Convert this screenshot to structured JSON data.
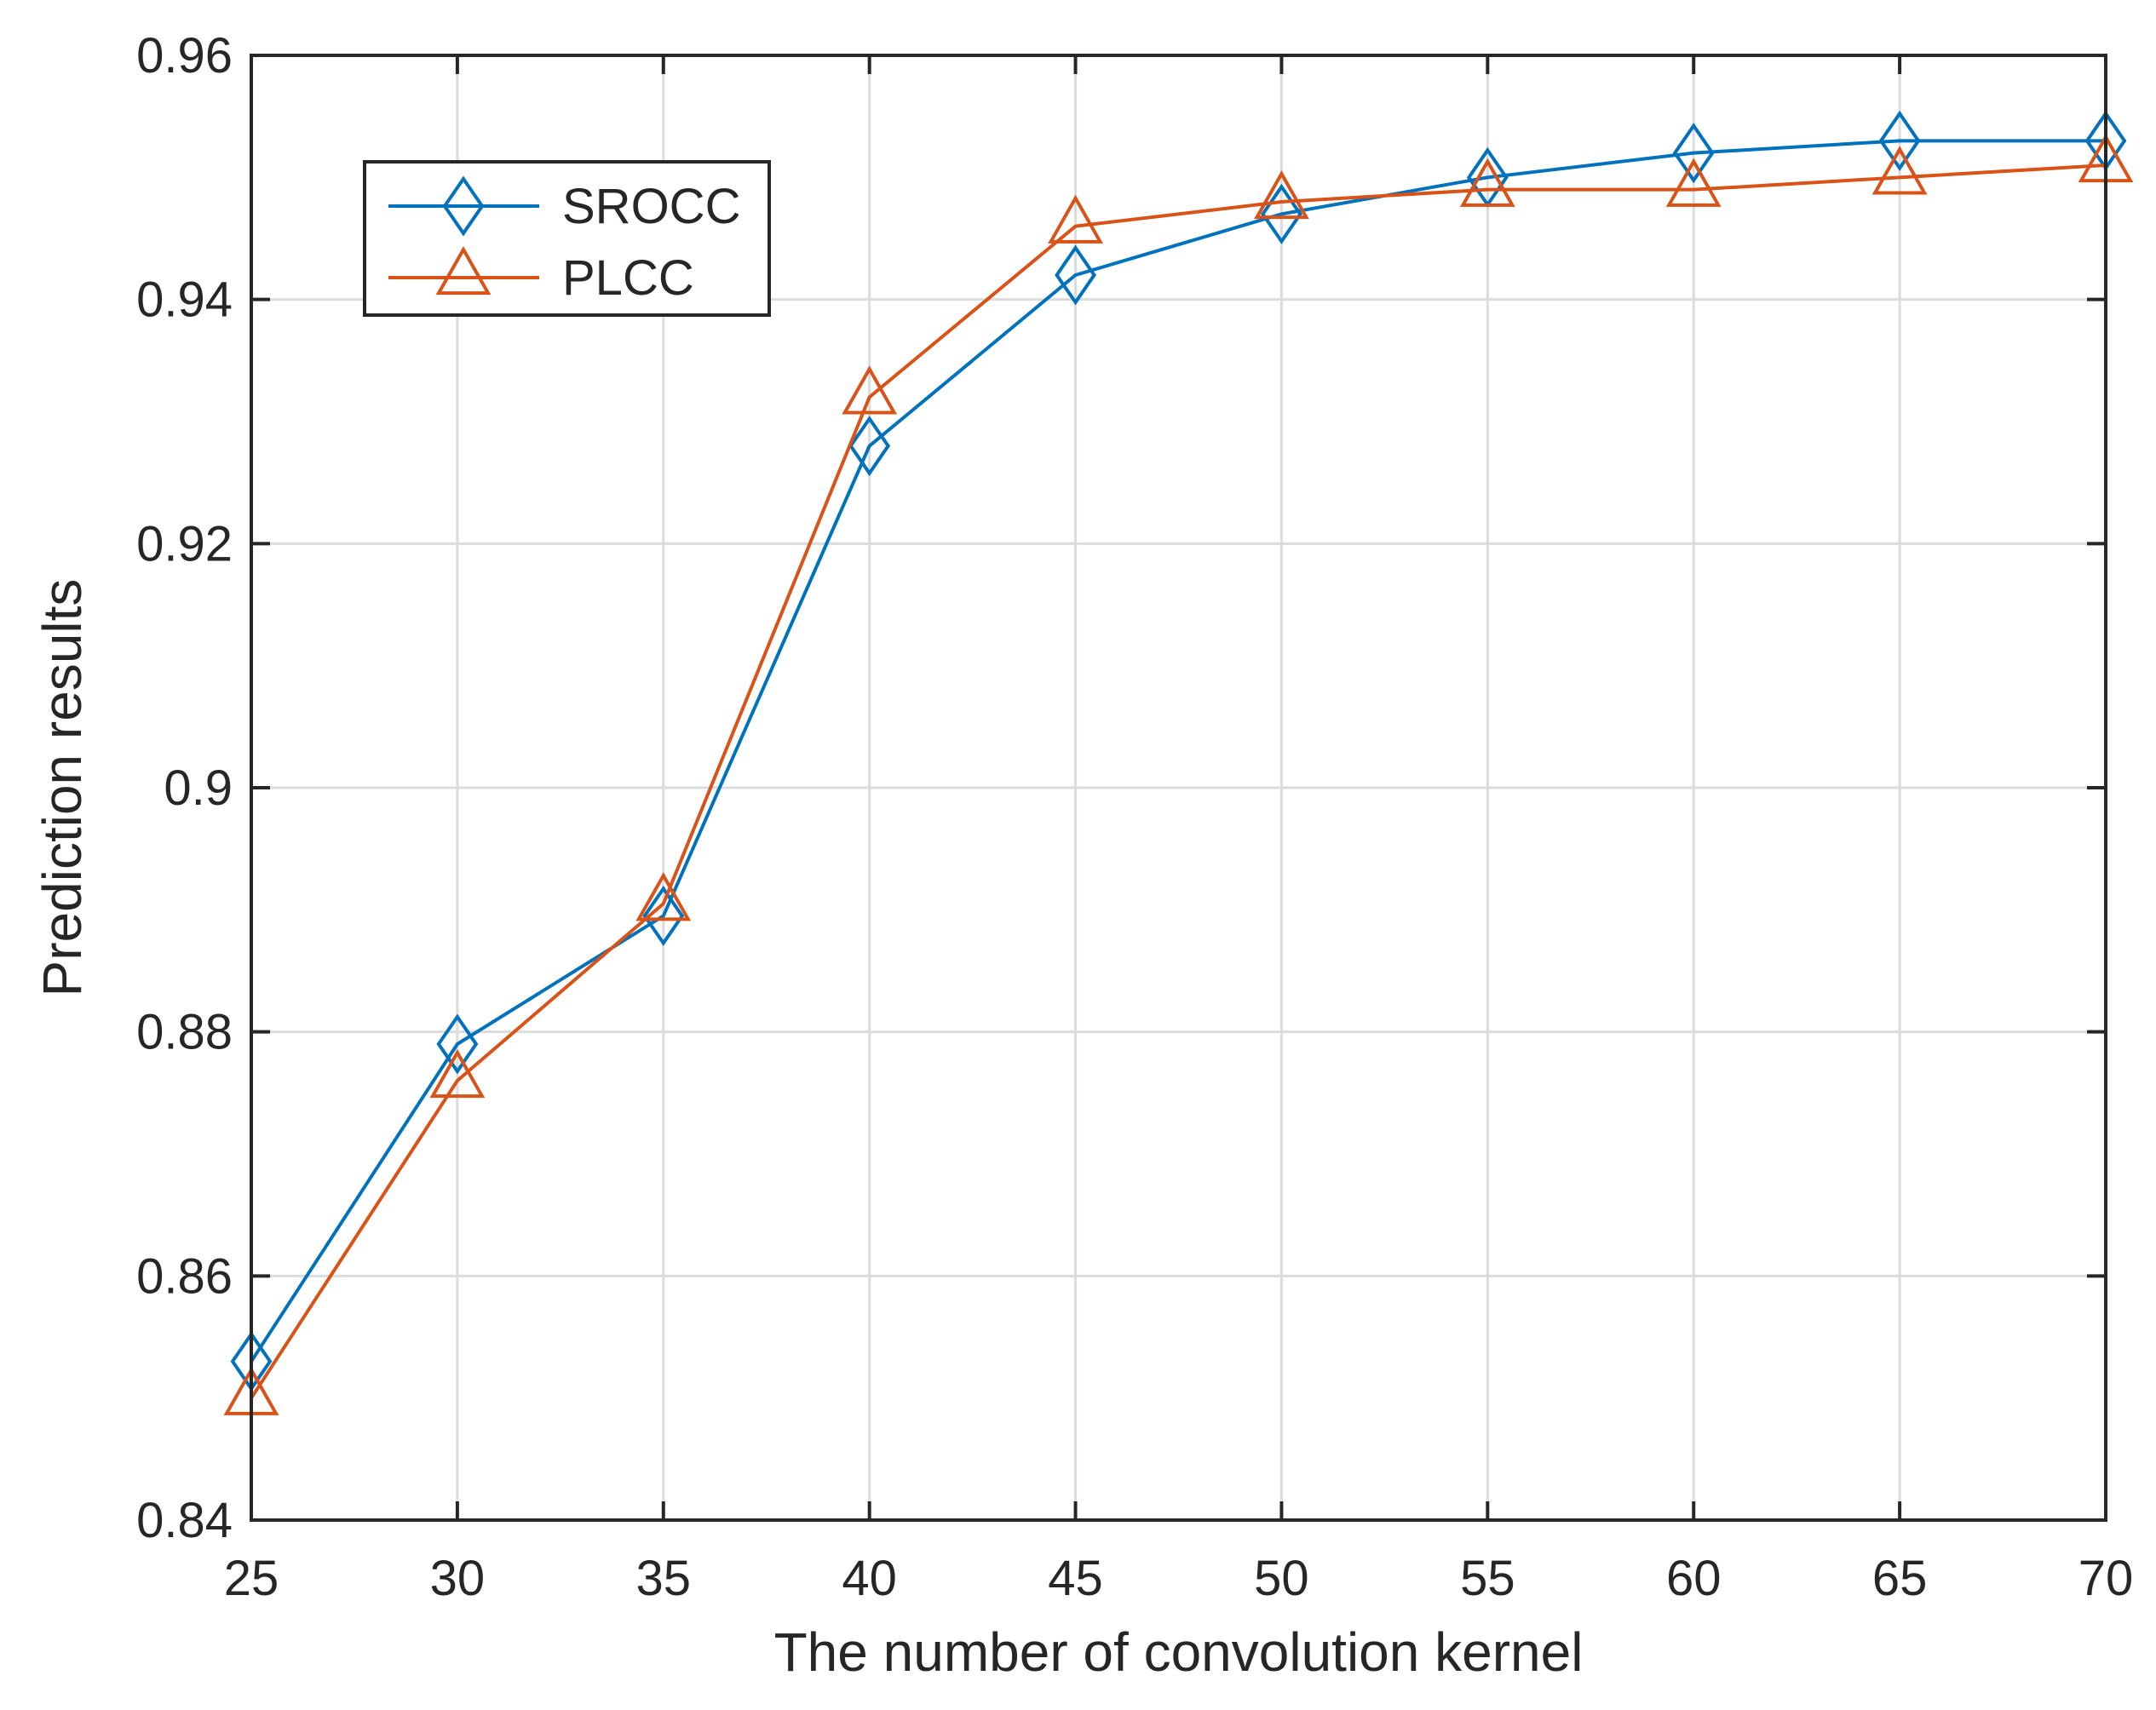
{
  "chart_data": {
    "type": "line",
    "title": "",
    "xlabel": "The number of convolution kernel",
    "ylabel": "Prediction results",
    "x": [
      25,
      30,
      35,
      40,
      45,
      50,
      55,
      60,
      65,
      70
    ],
    "xlim": [
      25,
      70
    ],
    "ylim": [
      0.84,
      0.96
    ],
    "xticks": [
      25,
      30,
      35,
      40,
      45,
      50,
      55,
      60,
      65,
      70
    ],
    "xtick_labels": [
      "25",
      "30",
      "35",
      "40",
      "45",
      "50",
      "55",
      "60",
      "65",
      "70"
    ],
    "yticks": [
      0.84,
      0.86,
      0.88,
      0.9,
      0.92,
      0.94,
      0.96
    ],
    "ytick_labels": [
      "0.84",
      "0.86",
      "0.88",
      "0.9",
      "0.92",
      "0.94",
      "0.96"
    ],
    "grid": true,
    "legend_position": "top-left",
    "series": [
      {
        "name": "SROCC",
        "color": "#0072BD",
        "marker": "diamond",
        "values": [
          0.853,
          0.879,
          0.8895,
          0.928,
          0.942,
          0.947,
          0.95,
          0.952,
          0.953,
          0.953
        ]
      },
      {
        "name": "PLCC",
        "color": "#D95319",
        "marker": "triangle",
        "values": [
          0.85,
          0.876,
          0.8905,
          0.932,
          0.946,
          0.948,
          0.949,
          0.949,
          0.95,
          0.951
        ]
      }
    ]
  }
}
